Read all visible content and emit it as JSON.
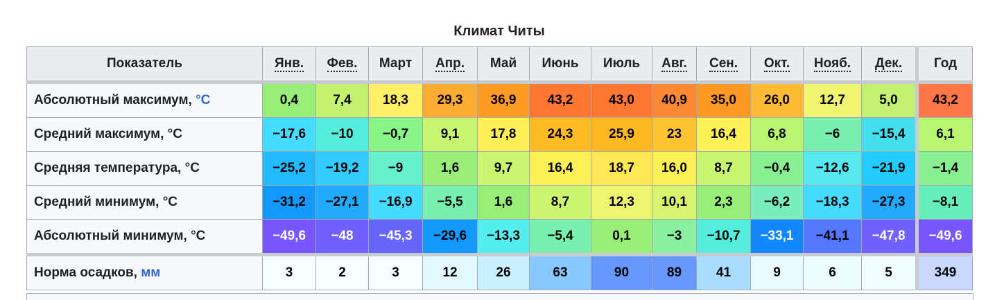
{
  "title": "Климат Читы",
  "table": {
    "header": [
      "Показатель",
      "Янв.",
      "Фев.",
      "Март",
      "Апр.",
      "Май",
      "Июнь",
      "Июль",
      "Авг.",
      "Сен.",
      "Окт.",
      "Нояб.",
      "Дек.",
      "Год"
    ],
    "rows": [
      {
        "label": "Абсолютный максимум, ",
        "link": "°C",
        "cells": [
          "0,4",
          "7,4",
          "18,3",
          "29,3",
          "36,9",
          "43,2",
          "43,0",
          "40,9",
          "35,0",
          "26,0",
          "12,7",
          "5,0",
          "43,2"
        ],
        "colors": [
          "#99ee77",
          "#c4f070",
          "#ffee66",
          "#ffac33",
          "#ff9a22",
          "#ff7733",
          "#ff7733",
          "#ff8833",
          "#ff9922",
          "#ffbb33",
          "#f2f570",
          "#c2f070",
          "#ff7744"
        ]
      },
      {
        "label": "Средний максимум, °C",
        "cells": [
          "−17,6",
          "−10",
          "−0,7",
          "9,1",
          "17,8",
          "24,3",
          "25,9",
          "23",
          "16,4",
          "6,8",
          "−6",
          "−15,4",
          "6,1"
        ],
        "colors": [
          "#44ddff",
          "#55eedd",
          "#88f588",
          "#c8f570",
          "#ffee55",
          "#ffbb22",
          "#ffb822",
          "#ffc430",
          "#fff055",
          "#b8f570",
          "#77f0b0",
          "#44e0f0",
          "#b8f570"
        ]
      },
      {
        "label": "Средняя температура, °C",
        "cells": [
          "−25,2",
          "−19,2",
          "−9",
          "1,6",
          "9,7",
          "16,4",
          "18,7",
          "16,0",
          "8,7",
          "−0,4",
          "−12,6",
          "−21,9",
          "−1,4"
        ],
        "colors": [
          "#22bbff",
          "#33ccff",
          "#66f0cc",
          "#99ee77",
          "#ccf570",
          "#fff055",
          "#ffe855",
          "#fff055",
          "#c8f570",
          "#88f090",
          "#55e8ee",
          "#22ccff",
          "#88f090"
        ]
      },
      {
        "label": "Средний минимум, °C",
        "cells": [
          "−31,2",
          "−27,1",
          "−16,9",
          "−5,5",
          "1,6",
          "8,7",
          "12,3",
          "10,1",
          "2,3",
          "−6,2",
          "−18,3",
          "−27,3",
          "−8,1"
        ],
        "colors": [
          "#1199ff",
          "#22aaff",
          "#44ddff",
          "#77f0b0",
          "#99ee77",
          "#ccf570",
          "#eef570",
          "#d8f570",
          "#99ee77",
          "#77eebb",
          "#44ddff",
          "#22aaff",
          "#66eebb"
        ]
      },
      {
        "label": "Абсолютный минимум, °C",
        "cells": [
          "−49,6",
          "−48",
          "−45,3",
          "−29,6",
          "−13,3",
          "−5,4",
          "0,1",
          "−3",
          "−10,7",
          "−33,1",
          "−41,1",
          "−47,8",
          "−49,6"
        ],
        "colors": [
          "#7755ff",
          "#7060ff",
          "#6666ff",
          "#1199ff",
          "#55eeee",
          "#77f0b0",
          "#99ee77",
          "#88f0a0",
          "#55eedd",
          "#1188ff",
          "#5577ff",
          "#7060ff",
          "#7755ff"
        ]
      },
      {
        "label": "Норма осадков, ",
        "link": "мм",
        "cells": [
          "3",
          "2",
          "3",
          "12",
          "26",
          "63",
          "90",
          "89",
          "41",
          "9",
          "6",
          "5",
          "349"
        ],
        "colors": [
          "#f4feff",
          "#f4feff",
          "#f4feff",
          "#e0faff",
          "#c8f0ff",
          "#88c8ff",
          "#6699ff",
          "#6699ff",
          "#aaddff",
          "#e8fcff",
          "#eefeff",
          "#f0feff",
          "#c8d8ff"
        ]
      }
    ]
  }
}
